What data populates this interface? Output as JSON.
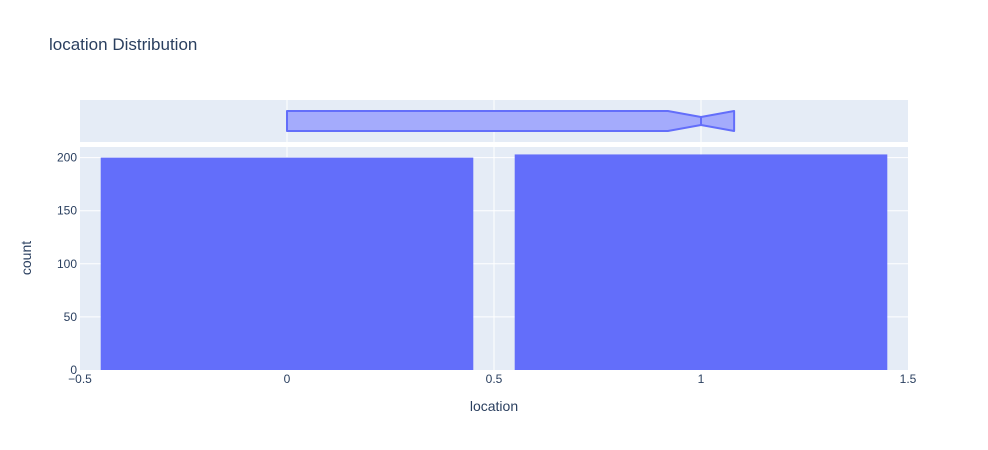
{
  "chart_data": {
    "type": "bar",
    "title": "location Distribution",
    "xlabel": "location",
    "ylabel": "count",
    "categories": [
      0,
      1
    ],
    "values": [
      200,
      203
    ],
    "xlim": [
      -0.5,
      1.5
    ],
    "ylim": [
      0,
      210
    ],
    "x_ticks": [
      "−0.5",
      "0",
      "0.5",
      "1",
      "1.5"
    ],
    "y_ticks": [
      "0",
      "50",
      "100",
      "150",
      "200"
    ],
    "marginal": {
      "type": "box",
      "q1": 0,
      "median": 1,
      "q3": 1,
      "lower_fence": 0,
      "upper_fence": 1
    },
    "grid": true,
    "colors": {
      "bar": "#636efa",
      "box_fill": "#a4abfc",
      "box_line": "#636efa",
      "plot_bg": "#e5ecf6",
      "grid": "#ffffff",
      "text": "#2a3f5f"
    }
  }
}
